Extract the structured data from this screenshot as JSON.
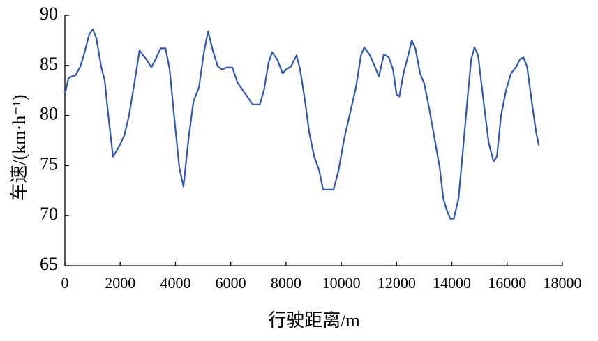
{
  "chart_data": {
    "type": "line",
    "x_label": "行驶距离/m",
    "y_label": "车速/(km·h⁻¹)",
    "x": [
      0,
      126,
      250,
      380,
      560,
      680,
      880,
      1010,
      1140,
      1310,
      1440,
      1570,
      1740,
      1940,
      2150,
      2320,
      2530,
      2700,
      2830,
      2950,
      3130,
      3280,
      3460,
      3640,
      3790,
      3960,
      4140,
      4290,
      4470,
      4650,
      4850,
      5030,
      5180,
      5350,
      5530,
      5680,
      5860,
      6060,
      6240,
      6440,
      6620,
      6790,
      7050,
      7200,
      7370,
      7500,
      7680,
      7880,
      8010,
      8180,
      8380,
      8510,
      8690,
      8840,
      9020,
      9200,
      9340,
      9720,
      9900,
      10100,
      10330,
      10530,
      10710,
      10830,
      11040,
      11210,
      11360,
      11540,
      11720,
      11870,
      12000,
      12100,
      12250,
      12420,
      12550,
      12680,
      12850,
      13000,
      13180,
      13380,
      13560,
      13690,
      13810,
      13940,
      14070,
      14240,
      14390,
      14570,
      14700,
      14820,
      14950,
      15130,
      15330,
      15510,
      15630,
      15780,
      15960,
      16140,
      16340,
      16460,
      16590,
      16720,
      16890,
      17050,
      17150
    ],
    "series": [
      {
        "color": "#2d55c0",
        "values": [
          82.1,
          83.7,
          83.9,
          84,
          84.9,
          86,
          88.1,
          88.6,
          87.7,
          84.9,
          83.5,
          80,
          75.9,
          76.8,
          78,
          80,
          83.5,
          86.5,
          86,
          85.6,
          84.8,
          85.6,
          86.7,
          86.7,
          84.6,
          79.7,
          74.8,
          72.9,
          77.6,
          81.4,
          82.8,
          86.3,
          88.4,
          86.5,
          84.9,
          84.6,
          84.8,
          84.8,
          83.3,
          82.5,
          81.8,
          81.1,
          81.1,
          82.5,
          85.3,
          86.3,
          85.6,
          84.2,
          84.6,
          84.9,
          86,
          84.6,
          81.4,
          78.3,
          75.9,
          74.5,
          72.6,
          72.6,
          74.5,
          77.6,
          80.4,
          82.8,
          86,
          86.8,
          86,
          84.9,
          83.9,
          86.1,
          85.8,
          84.6,
          82.1,
          81.9,
          84.2,
          86,
          87.5,
          86.7,
          84.2,
          83.2,
          80.7,
          77.6,
          74.8,
          71.7,
          70.6,
          69.7,
          69.7,
          71.7,
          76.2,
          81.8,
          85.6,
          86.8,
          86,
          81.8,
          77.3,
          75.4,
          75.9,
          80,
          82.5,
          84.2,
          84.9,
          85.6,
          85.8,
          84.9,
          81.4,
          78.3,
          77
        ]
      }
    ],
    "xlim": [
      0,
      18000
    ],
    "xticks": [
      0,
      2000,
      4000,
      6000,
      8000,
      10000,
      12000,
      14000,
      16000,
      18000
    ],
    "ylim": [
      65,
      90
    ],
    "yticks": [
      65,
      70,
      75,
      80,
      85,
      90
    ]
  }
}
